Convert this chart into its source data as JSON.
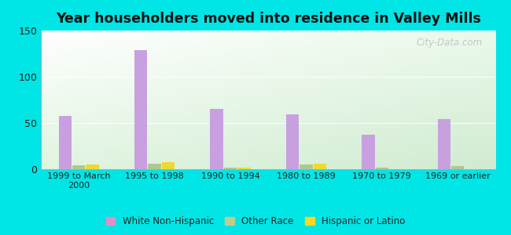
{
  "title": "Year householders moved into residence in Valley Mills",
  "categories": [
    "1999 to March\n2000",
    "1995 to 1998",
    "1990 to 1994",
    "1980 to 1989",
    "1970 to 1979",
    "1969 or earlier"
  ],
  "series": {
    "White Non-Hispanic": [
      58,
      129,
      65,
      59,
      37,
      54
    ],
    "Other Race": [
      4,
      6,
      2,
      5,
      2,
      3
    ],
    "Hispanic or Latino": [
      5,
      8,
      2,
      6,
      0,
      0
    ]
  },
  "colors": {
    "White Non-Hispanic": "#c8a0e0",
    "Other Race": "#b0c890",
    "Hispanic or Latino": "#f0d830"
  },
  "legend_colors": {
    "White Non-Hispanic": "#e090c8",
    "Other Race": "#c0cc90",
    "Hispanic or Latino": "#f5d820"
  },
  "ylim": [
    0,
    150
  ],
  "yticks": [
    0,
    50,
    100,
    150
  ],
  "background_color": "#00e5e5",
  "watermark": "City-Data.com",
  "bar_width": 0.18
}
